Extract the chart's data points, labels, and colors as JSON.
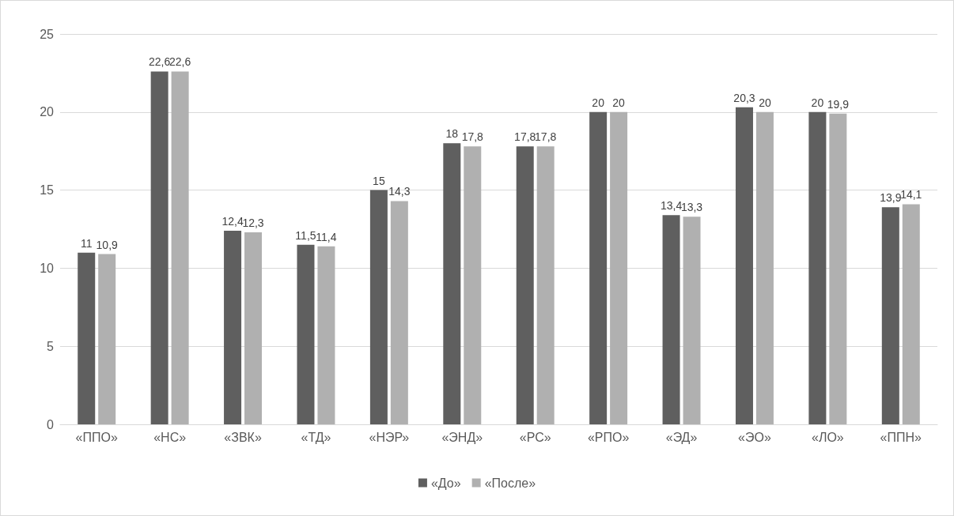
{
  "chart_data": {
    "type": "bar",
    "categories": [
      "«ППО»",
      "«НС»",
      "«ЗВК»",
      "«ТД»",
      "«НЭР»",
      "«ЭНД»",
      "«РС»",
      "«РПО»",
      "«ЭД»",
      "«ЭО»",
      "«ЛО»",
      "«ППН»"
    ],
    "series": [
      {
        "name": "«До»",
        "color": "#5f5f5f",
        "values": [
          11,
          22.6,
          12.4,
          11.5,
          15,
          18,
          17.8,
          20,
          13.4,
          20.3,
          20,
          13.9
        ],
        "value_labels": [
          "11",
          "22,6",
          "12,4",
          "11,5",
          "15",
          "18",
          "17,8",
          "20",
          "13,4",
          "20,3",
          "20",
          "13,9"
        ]
      },
      {
        "name": "«После»",
        "color": "#b0b0b0",
        "values": [
          10.9,
          22.6,
          12.3,
          11.4,
          14.3,
          17.8,
          17.8,
          20,
          13.3,
          20,
          19.9,
          14.1
        ],
        "value_labels": [
          "10,9",
          "22,6",
          "12,3",
          "11,4",
          "14,3",
          "17,8",
          "17,8",
          "20",
          "13,3",
          "20",
          "19,9",
          "14,1"
        ]
      }
    ],
    "ylim": [
      0,
      25
    ],
    "yticks": [
      0,
      5,
      10,
      15,
      20,
      25
    ],
    "grid": "y",
    "legend": "bottom"
  }
}
